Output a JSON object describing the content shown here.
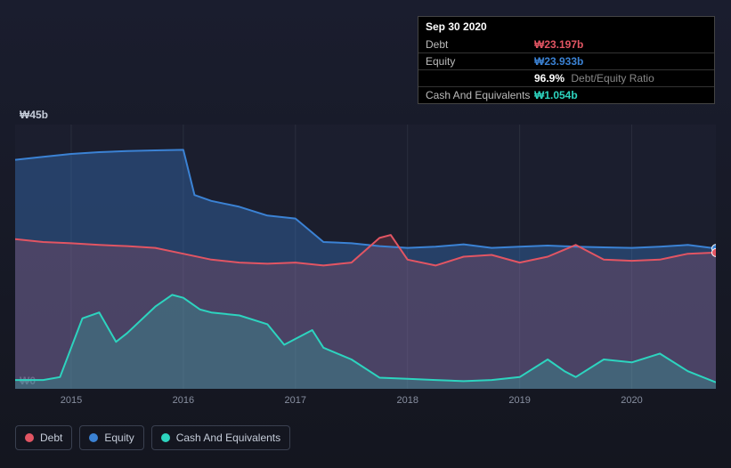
{
  "chart": {
    "type": "area",
    "background": "#14161f",
    "ylim": [
      0,
      45
    ],
    "ylabels": {
      "top": "₩45b",
      "bottom": "₩0"
    },
    "xlim": [
      2014.5,
      2020.75
    ],
    "xticks": [
      2015,
      2016,
      2017,
      2018,
      2019,
      2020
    ],
    "gridline_color": "#2a2e3d",
    "series": {
      "equity": {
        "label": "Equity",
        "line_color": "#3b82d4",
        "fill_color": "rgba(59,130,212,0.35)",
        "line_width": 2,
        "points": [
          [
            2014.5,
            39.0
          ],
          [
            2014.75,
            39.5
          ],
          [
            2015.0,
            40.0
          ],
          [
            2015.25,
            40.3
          ],
          [
            2015.5,
            40.5
          ],
          [
            2015.75,
            40.6
          ],
          [
            2016.0,
            40.7
          ],
          [
            2016.1,
            33.0
          ],
          [
            2016.25,
            32.0
          ],
          [
            2016.5,
            31.0
          ],
          [
            2016.75,
            29.5
          ],
          [
            2017.0,
            29.0
          ],
          [
            2017.25,
            25.0
          ],
          [
            2017.5,
            24.8
          ],
          [
            2017.75,
            24.3
          ],
          [
            2018.0,
            24.0
          ],
          [
            2018.25,
            24.2
          ],
          [
            2018.5,
            24.6
          ],
          [
            2018.75,
            24.0
          ],
          [
            2019.0,
            24.2
          ],
          [
            2019.25,
            24.4
          ],
          [
            2019.5,
            24.2
          ],
          [
            2019.75,
            24.1
          ],
          [
            2020.0,
            24.0
          ],
          [
            2020.25,
            24.2
          ],
          [
            2020.5,
            24.5
          ],
          [
            2020.75,
            23.9
          ]
        ]
      },
      "debt": {
        "label": "Debt",
        "line_color": "#e25563",
        "fill_color": "rgba(226,85,99,0.20)",
        "line_width": 2,
        "points": [
          [
            2014.5,
            25.5
          ],
          [
            2014.75,
            25.0
          ],
          [
            2015.0,
            24.8
          ],
          [
            2015.25,
            24.5
          ],
          [
            2015.5,
            24.3
          ],
          [
            2015.75,
            24.0
          ],
          [
            2016.0,
            23.0
          ],
          [
            2016.25,
            22.0
          ],
          [
            2016.5,
            21.5
          ],
          [
            2016.75,
            21.3
          ],
          [
            2017.0,
            21.5
          ],
          [
            2017.25,
            21.0
          ],
          [
            2017.5,
            21.5
          ],
          [
            2017.75,
            25.7
          ],
          [
            2017.85,
            26.2
          ],
          [
            2018.0,
            22.0
          ],
          [
            2018.25,
            21.0
          ],
          [
            2018.5,
            22.5
          ],
          [
            2018.75,
            22.8
          ],
          [
            2019.0,
            21.5
          ],
          [
            2019.25,
            22.5
          ],
          [
            2019.5,
            24.5
          ],
          [
            2019.75,
            22.0
          ],
          [
            2020.0,
            21.8
          ],
          [
            2020.25,
            22.0
          ],
          [
            2020.5,
            23.0
          ],
          [
            2020.75,
            23.2
          ]
        ]
      },
      "cash": {
        "label": "Cash And Equivalents",
        "line_color": "#2dd4bf",
        "fill_color": "rgba(45,212,191,0.22)",
        "line_width": 2,
        "points": [
          [
            2014.5,
            1.5
          ],
          [
            2014.75,
            1.5
          ],
          [
            2014.9,
            2.0
          ],
          [
            2015.0,
            7.0
          ],
          [
            2015.1,
            12.0
          ],
          [
            2015.25,
            13.0
          ],
          [
            2015.4,
            8.0
          ],
          [
            2015.5,
            9.5
          ],
          [
            2015.75,
            14.0
          ],
          [
            2015.9,
            16.0
          ],
          [
            2016.0,
            15.5
          ],
          [
            2016.15,
            13.5
          ],
          [
            2016.25,
            13.0
          ],
          [
            2016.5,
            12.5
          ],
          [
            2016.75,
            11.0
          ],
          [
            2016.9,
            7.5
          ],
          [
            2017.0,
            8.5
          ],
          [
            2017.15,
            10.0
          ],
          [
            2017.25,
            7.0
          ],
          [
            2017.5,
            5.0
          ],
          [
            2017.75,
            1.9
          ],
          [
            2018.0,
            1.7
          ],
          [
            2018.25,
            1.5
          ],
          [
            2018.5,
            1.3
          ],
          [
            2018.75,
            1.5
          ],
          [
            2019.0,
            2.0
          ],
          [
            2019.25,
            5.0
          ],
          [
            2019.4,
            3.0
          ],
          [
            2019.5,
            2.0
          ],
          [
            2019.75,
            5.0
          ],
          [
            2020.0,
            4.5
          ],
          [
            2020.25,
            6.0
          ],
          [
            2020.5,
            3.0
          ],
          [
            2020.75,
            1.1
          ]
        ]
      }
    },
    "marker": {
      "x": 2020.75,
      "debt_color": "#e25563",
      "equity_color": "#3b82d4"
    }
  },
  "tooltip": {
    "date": "Sep 30 2020",
    "rows": [
      {
        "label": "Debt",
        "value": "₩23.197b",
        "class": "debt"
      },
      {
        "label": "Equity",
        "value": "₩23.933b",
        "class": "equity"
      }
    ],
    "ratio": {
      "pct": "96.9%",
      "label": "Debt/Equity Ratio"
    },
    "cash_row": {
      "label": "Cash And Equivalents",
      "value": "₩1.054b",
      "class": "cash"
    }
  },
  "legend": {
    "items": [
      {
        "label": "Debt",
        "color": "#e25563"
      },
      {
        "label": "Equity",
        "color": "#3b82d4"
      },
      {
        "label": "Cash And Equivalents",
        "color": "#2dd4bf"
      }
    ]
  }
}
